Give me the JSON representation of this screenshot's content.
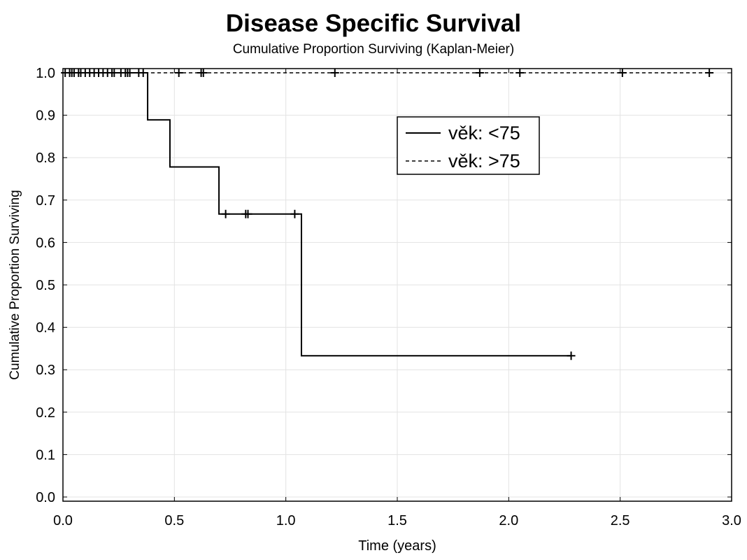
{
  "chart_data": {
    "type": "line",
    "title": "Disease Specific Survival",
    "subtitle": "Cumulative Proportion Surviving (Kaplan-Meier)",
    "xlabel": "Time (years)",
    "ylabel": "Cumulative Proportion Surviving",
    "xlim": [
      0.0,
      3.0
    ],
    "ylim": [
      0.0,
      1.0
    ],
    "x_ticks": [
      0.0,
      0.5,
      1.0,
      1.5,
      2.0,
      2.5,
      3.0
    ],
    "x_tick_labels": [
      "0.0",
      "0.5",
      "1.0",
      "1.5",
      "2.0",
      "2.5",
      "3.0"
    ],
    "y_ticks": [
      0.0,
      0.1,
      0.2,
      0.3,
      0.4,
      0.5,
      0.6,
      0.7,
      0.8,
      0.9,
      1.0
    ],
    "y_tick_labels": [
      "0.0",
      "0.1",
      "0.2",
      "0.3",
      "0.4",
      "0.5",
      "0.6",
      "0.7",
      "0.8",
      "0.9",
      "1.0"
    ],
    "grid": true,
    "legend_position": "upper-right",
    "series": [
      {
        "name": "věk: <75",
        "line_style": "solid",
        "color": "#000000",
        "steps": [
          [
            0.0,
            1.0
          ],
          [
            0.38,
            0.889
          ],
          [
            0.48,
            0.778
          ],
          [
            0.7,
            0.667
          ],
          [
            1.07,
            0.333
          ]
        ],
        "end_x": 2.28,
        "censored": [
          [
            0.03,
            1.0
          ],
          [
            0.05,
            1.0
          ],
          [
            0.07,
            1.0
          ],
          [
            0.1,
            1.0
          ],
          [
            0.14,
            1.0
          ],
          [
            0.16,
            1.0
          ],
          [
            0.18,
            1.0
          ],
          [
            0.2,
            1.0
          ],
          [
            0.23,
            1.0
          ],
          [
            0.26,
            1.0
          ],
          [
            0.28,
            1.0
          ],
          [
            0.3,
            1.0
          ],
          [
            0.34,
            1.0
          ],
          [
            0.36,
            1.0
          ],
          [
            0.73,
            0.667
          ],
          [
            0.82,
            0.667
          ],
          [
            0.83,
            0.667
          ],
          [
            1.04,
            0.667
          ],
          [
            2.28,
            0.333
          ]
        ]
      },
      {
        "name": "věk: >75",
        "line_style": "dashed",
        "color": "#000000",
        "steps": [
          [
            0.0,
            1.0
          ]
        ],
        "end_x": 2.9,
        "censored": [
          [
            0.01,
            1.0
          ],
          [
            0.04,
            1.0
          ],
          [
            0.08,
            1.0
          ],
          [
            0.12,
            1.0
          ],
          [
            0.22,
            1.0
          ],
          [
            0.29,
            1.0
          ],
          [
            0.52,
            1.0
          ],
          [
            0.62,
            1.0
          ],
          [
            0.63,
            1.0
          ],
          [
            1.22,
            1.0
          ],
          [
            1.87,
            1.0
          ],
          [
            2.05,
            1.0
          ],
          [
            2.51,
            1.0
          ],
          [
            2.9,
            1.0
          ]
        ]
      }
    ]
  }
}
